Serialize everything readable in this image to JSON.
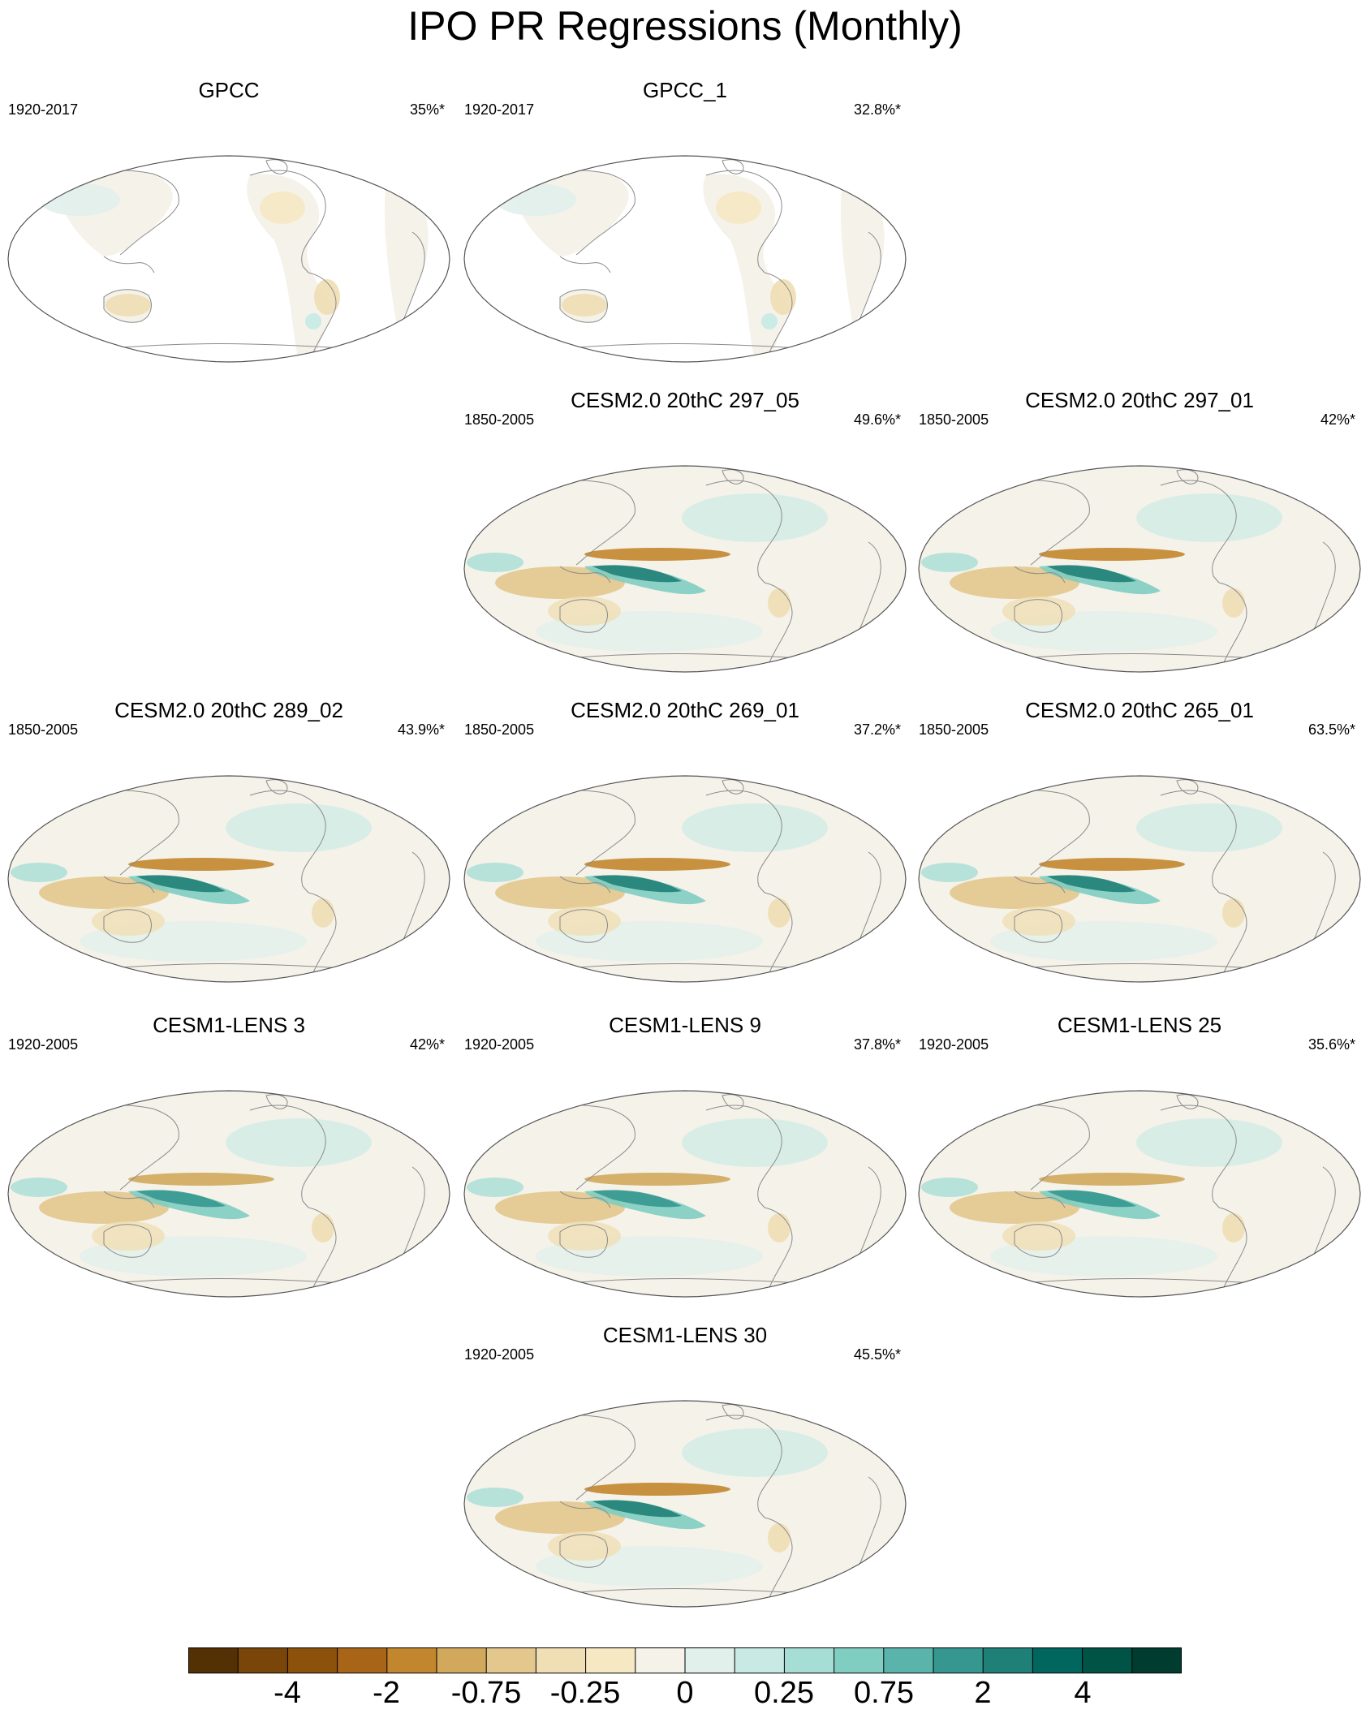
{
  "figure": {
    "title": "IPO PR Regressions (Monthly)"
  },
  "panels": [
    {
      "title": "GPCC",
      "period": "1920-2017",
      "percent": "35%*",
      "kind": "obs"
    },
    {
      "title": "GPCC_1",
      "period": "1920-2017",
      "percent": "32.8%*",
      "kind": "obs"
    },
    {
      "title": "CESM2.0 20thC 297_05",
      "period": "1850-2005",
      "percent": "49.6%*",
      "kind": "model-strong"
    },
    {
      "title": "CESM2.0 20thC 297_01",
      "period": "1850-2005",
      "percent": "42%*",
      "kind": "model-strong"
    },
    {
      "title": "CESM2.0 20thC 289_02",
      "period": "1850-2005",
      "percent": "43.9%*",
      "kind": "model-strong"
    },
    {
      "title": "CESM2.0 20thC 269_01",
      "period": "1850-2005",
      "percent": "37.2%*",
      "kind": "model-strong"
    },
    {
      "title": "CESM2.0 20thC 265_01",
      "period": "1850-2005",
      "percent": "63.5%*",
      "kind": "model-strong"
    },
    {
      "title": "CESM1-LENS 3",
      "period": "1920-2005",
      "percent": "42%*",
      "kind": "model-weak"
    },
    {
      "title": "CESM1-LENS 9",
      "period": "1920-2005",
      "percent": "37.8%*",
      "kind": "model-weak"
    },
    {
      "title": "CESM1-LENS 25",
      "period": "1920-2005",
      "percent": "35.6%*",
      "kind": "model-weak"
    },
    {
      "title": "CESM1-LENS 30",
      "period": "1920-2005",
      "percent": "45.5%*",
      "kind": "model-strong"
    }
  ],
  "colorbar": {
    "colors": [
      "#543005",
      "#7a4508",
      "#8c510a",
      "#a86518",
      "#c2862e",
      "#d2a85c",
      "#e3c78c",
      "#f0deb4",
      "#f6e8c3",
      "#f5f2ea",
      "#e2f0ec",
      "#c7eae5",
      "#a6ddd4",
      "#80cdc1",
      "#5ab4ac",
      "#35978f",
      "#1f8077",
      "#01665e",
      "#015346",
      "#003c30"
    ],
    "tick_labels": [
      "-4",
      "-2",
      "-0.75",
      "-0.25",
      "0",
      "0.25",
      "0.75",
      "2",
      "4"
    ]
  }
}
